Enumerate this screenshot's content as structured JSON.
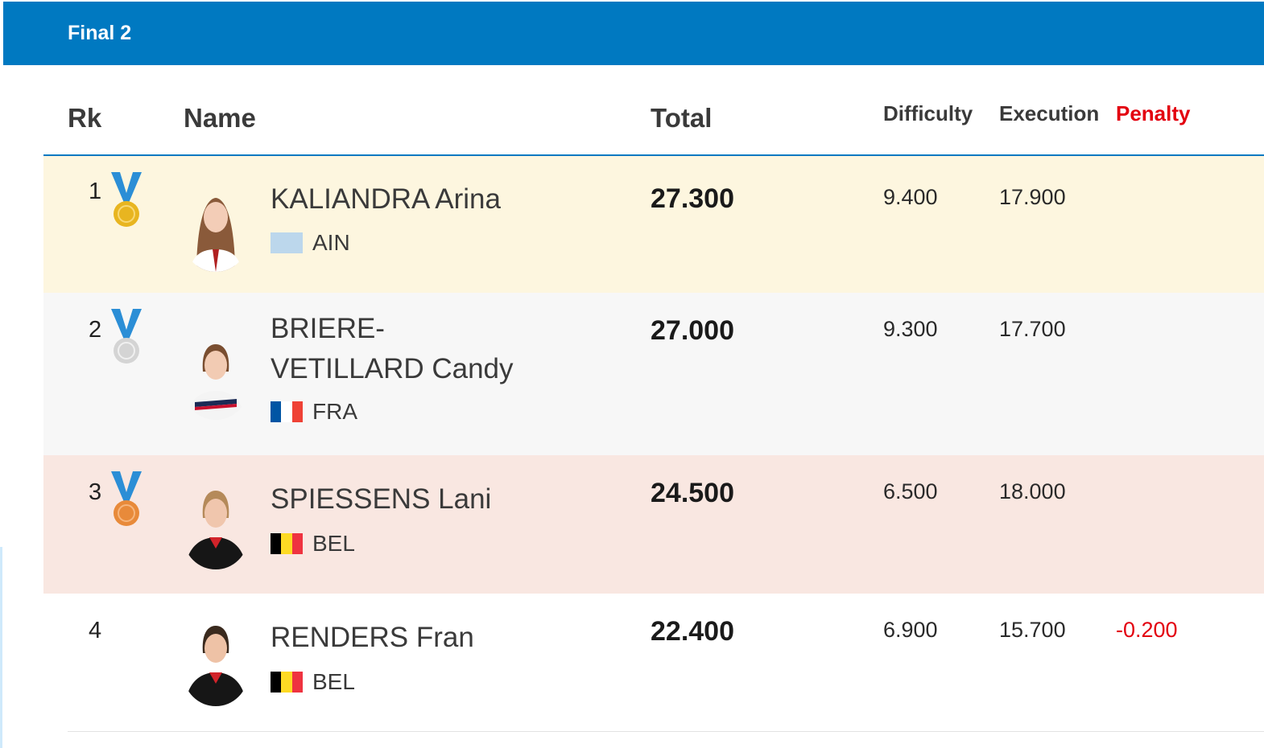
{
  "title": "Final 2",
  "headers": {
    "rank": "Rk",
    "name": "Name",
    "total": "Total",
    "difficulty": "Difficulty",
    "execution": "Execution",
    "penalty": "Penalty"
  },
  "colors": {
    "banner": "#0079c1",
    "penalty": "#e3000f",
    "gold_row": "#fdf6df",
    "silver_row": "#f7f7f7",
    "bronze_row": "#f9e7e1"
  },
  "rows": [
    {
      "rank": "1",
      "medal": "gold-medal-icon",
      "name": "KALIANDRA Arina",
      "country": "AIN",
      "total": "27.300",
      "difficulty": "9.400",
      "execution": "17.900",
      "penalty": ""
    },
    {
      "rank": "2",
      "medal": "silver-medal-icon",
      "name": "BRIERE-VETILLARD Candy",
      "country": "FRA",
      "total": "27.000",
      "difficulty": "9.300",
      "execution": "17.700",
      "penalty": ""
    },
    {
      "rank": "3",
      "medal": "bronze-medal-icon",
      "name": "SPIESSENS Lani",
      "country": "BEL",
      "total": "24.500",
      "difficulty": "6.500",
      "execution": "18.000",
      "penalty": ""
    },
    {
      "rank": "4",
      "medal": "",
      "name": "RENDERS Fran",
      "country": "BEL",
      "total": "22.400",
      "difficulty": "6.900",
      "execution": "15.700",
      "penalty": "-0.200"
    }
  ]
}
